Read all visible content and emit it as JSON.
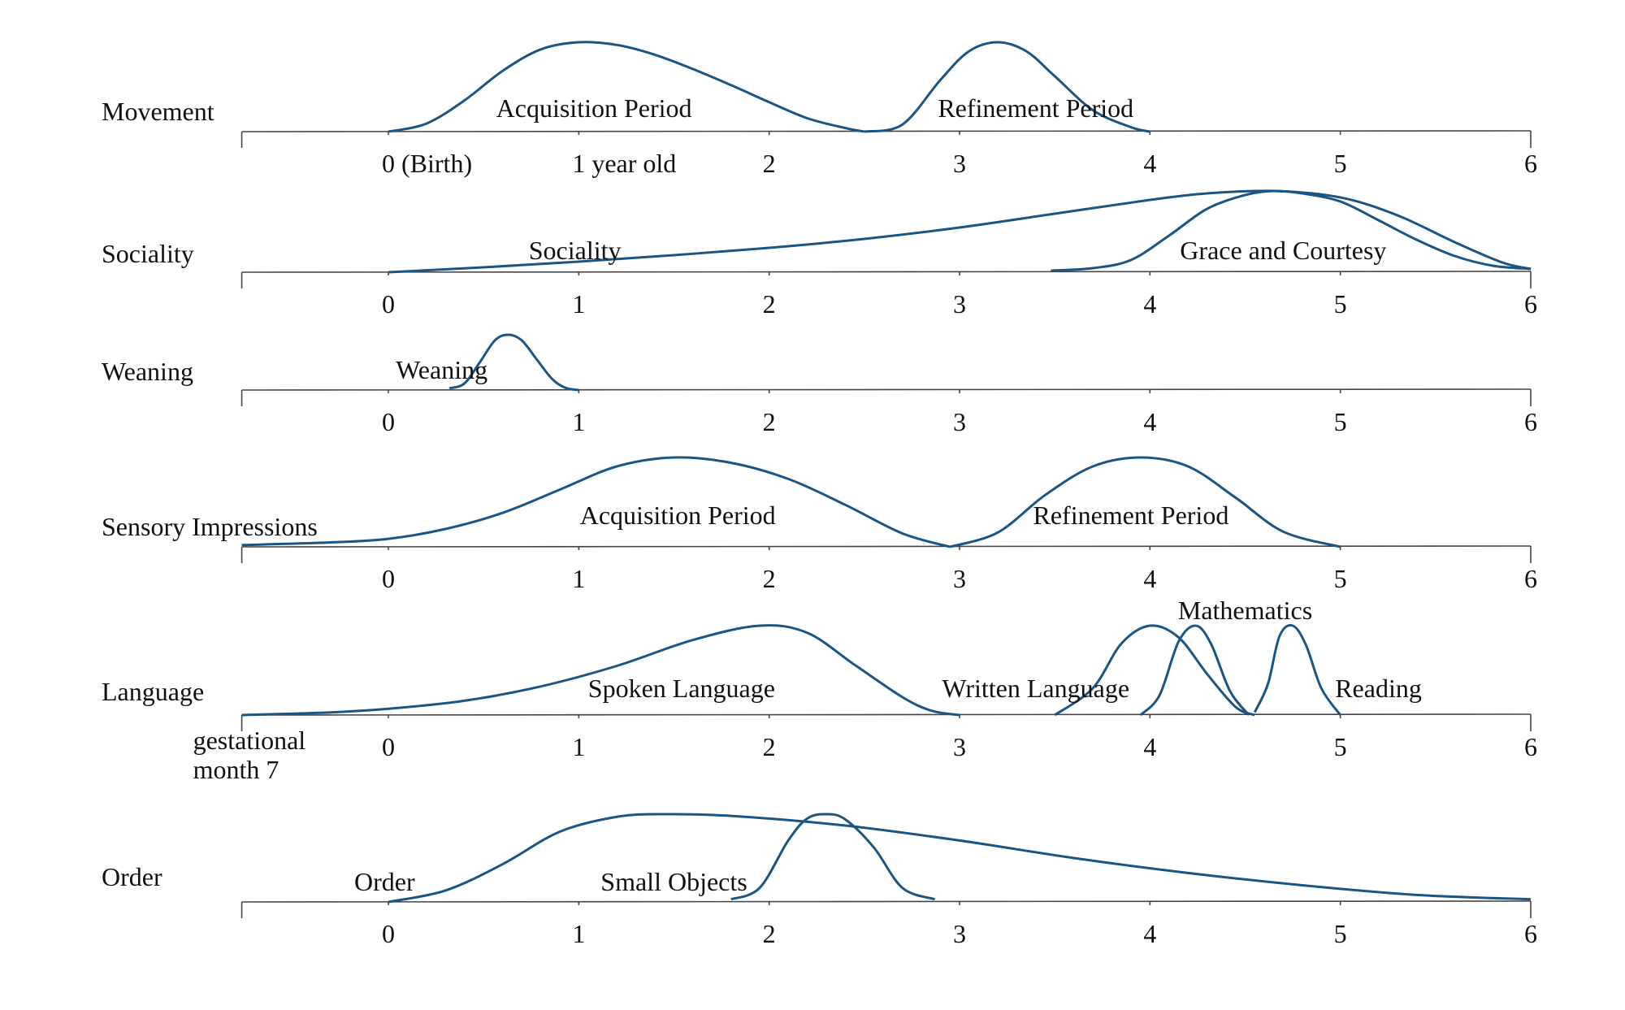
{
  "chart_data": {
    "type": "line",
    "colors": {
      "curve": "#1b5584",
      "axis": "#444444",
      "text": "#111111"
    },
    "rows": [
      {
        "label": "Movement",
        "xlim": [
          -0.77,
          6
        ],
        "ticks": [
          {
            "value": 0,
            "label": "0 (Birth)"
          },
          {
            "value": 1,
            "label": "1 year old"
          },
          {
            "value": 2,
            "label": "2"
          },
          {
            "value": 3,
            "label": "3"
          },
          {
            "value": 4,
            "label": "4"
          },
          {
            "value": 5,
            "label": "5"
          },
          {
            "value": 6,
            "label": "6"
          }
        ],
        "series": [
          {
            "name": "Acquisition Period",
            "label_x": 1.08,
            "x": [
              0,
              0.2,
              0.4,
              0.6,
              0.8,
              1.0,
              1.2,
              1.4,
              1.6,
              1.8,
              2.0,
              2.2,
              2.4,
              2.5
            ],
            "y": [
              0,
              0.09,
              0.35,
              0.68,
              0.92,
              1.0,
              0.97,
              0.86,
              0.7,
              0.52,
              0.33,
              0.15,
              0.04,
              0
            ]
          },
          {
            "name": "Refinement Period",
            "label_x": 3.4,
            "x": [
              2.5,
              2.7,
              2.9,
              3.05,
              3.2,
              3.35,
              3.5,
              3.7,
              3.9,
              4.0
            ],
            "y": [
              0,
              0.08,
              0.58,
              0.9,
              1.0,
              0.9,
              0.62,
              0.24,
              0.05,
              0
            ]
          }
        ]
      },
      {
        "label": "Sociality",
        "xlim": [
          -0.77,
          6
        ],
        "ticks": [
          {
            "value": 0,
            "label": "0"
          },
          {
            "value": 1,
            "label": "1"
          },
          {
            "value": 2,
            "label": "2"
          },
          {
            "value": 3,
            "label": "3"
          },
          {
            "value": 4,
            "label": "4"
          },
          {
            "value": 5,
            "label": "5"
          },
          {
            "value": 6,
            "label": "6"
          }
        ],
        "series": [
          {
            "name": "Sociality",
            "label_x": 0.98,
            "x": [
              0,
              0.5,
              1.0,
              1.5,
              2.0,
              2.5,
              3.0,
              3.5,
              4.0,
              4.3,
              4.65,
              5.0,
              5.3,
              5.6,
              5.85,
              6.0
            ],
            "y": [
              0,
              0.06,
              0.13,
              0.21,
              0.3,
              0.41,
              0.55,
              0.72,
              0.89,
              0.97,
              1.0,
              0.92,
              0.7,
              0.37,
              0.12,
              0.04
            ]
          },
          {
            "name": "Grace and Courtesy",
            "label_x": 4.7,
            "x": [
              3.48,
              3.7,
              3.9,
              4.1,
              4.3,
              4.5,
              4.65,
              4.8,
              5.0,
              5.2,
              5.4,
              5.6,
              5.8,
              6.0
            ],
            "y": [
              0.02,
              0.05,
              0.15,
              0.45,
              0.78,
              0.95,
              1.0,
              0.97,
              0.87,
              0.64,
              0.4,
              0.2,
              0.08,
              0.04
            ]
          }
        ]
      },
      {
        "label": "Weaning",
        "xlim": [
          -0.77,
          6
        ],
        "ticks": [
          {
            "value": 0,
            "label": "0"
          },
          {
            "value": 1,
            "label": "1"
          },
          {
            "value": 2,
            "label": "2"
          },
          {
            "value": 3,
            "label": "3"
          },
          {
            "value": 4,
            "label": "4"
          },
          {
            "value": 5,
            "label": "5"
          },
          {
            "value": 6,
            "label": "6"
          }
        ],
        "series": [
          {
            "name": "Weaning",
            "label_x": 0.28,
            "x": [
              0.32,
              0.4,
              0.48,
              0.56,
              0.63,
              0.7,
              0.78,
              0.86,
              0.93,
              1.0
            ],
            "y": [
              0.03,
              0.12,
              0.5,
              0.9,
              1.0,
              0.9,
              0.55,
              0.2,
              0.04,
              0
            ]
          }
        ]
      },
      {
        "label": "Sensory Impressions",
        "xlim": [
          -0.77,
          6
        ],
        "ticks": [
          {
            "value": 0,
            "label": "0"
          },
          {
            "value": 1,
            "label": "1"
          },
          {
            "value": 2,
            "label": "2"
          },
          {
            "value": 3,
            "label": "3"
          },
          {
            "value": 4,
            "label": "4"
          },
          {
            "value": 5,
            "label": "5"
          },
          {
            "value": 6,
            "label": "6"
          }
        ],
        "series": [
          {
            "name": "Acquisition Period",
            "label_x": 1.52,
            "x": [
              -0.77,
              -0.3,
              0,
              0.3,
              0.6,
              0.9,
              1.2,
              1.5,
              1.8,
              2.1,
              2.4,
              2.7,
              2.95
            ],
            "y": [
              0.02,
              0.05,
              0.09,
              0.2,
              0.38,
              0.64,
              0.9,
              1.0,
              0.94,
              0.76,
              0.47,
              0.15,
              0
            ]
          },
          {
            "name": "Refinement Period",
            "label_x": 3.9,
            "x": [
              2.95,
              3.2,
              3.45,
              3.7,
              3.95,
              4.2,
              4.45,
              4.7,
              5.0
            ],
            "y": [
              0,
              0.16,
              0.58,
              0.9,
              1.0,
              0.9,
              0.55,
              0.17,
              0
            ]
          }
        ]
      },
      {
        "label": "Language",
        "xlim": [
          -0.77,
          6
        ],
        "ticks": [
          {
            "value": -0.77,
            "label": "gestational month 7"
          },
          {
            "value": 0,
            "label": "0"
          },
          {
            "value": 1,
            "label": "1"
          },
          {
            "value": 2,
            "label": "2"
          },
          {
            "value": 3,
            "label": "3"
          },
          {
            "value": 4,
            "label": "4"
          },
          {
            "value": 5,
            "label": "5"
          },
          {
            "value": 6,
            "label": "6"
          }
        ],
        "series": [
          {
            "name": "Spoken Language",
            "label_x": 1.54,
            "x": [
              -0.77,
              -0.3,
              0,
              0.4,
              0.8,
              1.2,
              1.6,
              1.95,
              2.2,
              2.45,
              2.7,
              2.85,
              3.0
            ],
            "y": [
              0,
              0.03,
              0.07,
              0.16,
              0.32,
              0.55,
              0.84,
              1.0,
              0.92,
              0.56,
              0.2,
              0.05,
              0
            ]
          },
          {
            "name": "Written Language",
            "label_x": 4.1,
            "x": [
              3.5,
              3.7,
              3.85,
              4.0,
              4.15,
              4.3,
              4.45,
              4.55
            ],
            "y": [
              0,
              0.3,
              0.8,
              1.0,
              0.87,
              0.46,
              0.09,
              0
            ]
          },
          {
            "name": "Mathematics",
            "label_x": 4.1,
            "x": [
              3.95,
              4.05,
              4.15,
              4.24,
              4.32,
              4.42,
              4.52
            ],
            "y": [
              0,
              0.22,
              0.82,
              1.0,
              0.8,
              0.27,
              0
            ]
          },
          {
            "name": "Reading",
            "label_x": 5.2,
            "x": [
              4.55,
              4.62,
              4.68,
              4.75,
              4.82,
              4.9,
              5.0
            ],
            "y": [
              0.03,
              0.35,
              0.88,
              1.0,
              0.78,
              0.3,
              0
            ]
          }
        ]
      },
      {
        "label": "Order",
        "xlim": [
          -0.77,
          6
        ],
        "ticks": [
          {
            "value": 0,
            "label": "0"
          },
          {
            "value": 1,
            "label": "1"
          },
          {
            "value": 2,
            "label": "2"
          },
          {
            "value": 3,
            "label": "3"
          },
          {
            "value": 4,
            "label": "4"
          },
          {
            "value": 5,
            "label": "5"
          },
          {
            "value": 6,
            "label": "6"
          }
        ],
        "series": [
          {
            "name": "Order",
            "label_x": -0.02,
            "x": [
              0,
              0.3,
              0.6,
              0.9,
              1.2,
              1.45,
              1.8,
              2.4,
              3.0,
              3.6,
              4.2,
              4.8,
              5.4,
              6.0
            ],
            "y": [
              0,
              0.13,
              0.43,
              0.8,
              0.97,
              1.0,
              0.98,
              0.87,
              0.7,
              0.5,
              0.33,
              0.19,
              0.08,
              0.03
            ]
          },
          {
            "name": "Small Objects",
            "label_x": 1.5,
            "x": [
              1.8,
              1.95,
              2.1,
              2.2,
              2.3,
              2.4,
              2.55,
              2.7,
              2.87
            ],
            "y": [
              0.03,
              0.16,
              0.7,
              0.95,
              1.0,
              0.94,
              0.62,
              0.16,
              0.03
            ]
          }
        ]
      }
    ]
  }
}
